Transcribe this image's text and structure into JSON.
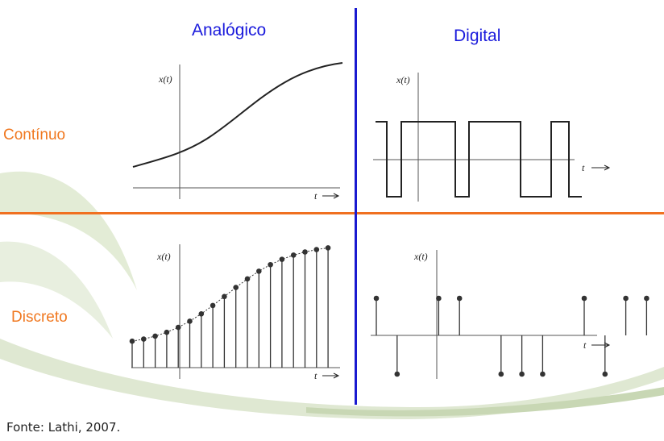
{
  "header": {
    "analog": "Analógico",
    "digital": "Digital"
  },
  "rows": {
    "continuous": "Contínuo",
    "discrete": "Discreto"
  },
  "source": "Fonte: Lathi, 2007.",
  "plot_labels": {
    "y": "x(t)",
    "x": "t"
  },
  "colors": {
    "column_title": "#1a1adc",
    "row_title": "#f07820",
    "h_separator": "#f07020",
    "v_separator": "#1a1ad0"
  },
  "signals": {
    "discrete_analog_samples": 18,
    "digital_levels": [
      "high",
      "low",
      "high",
      "high",
      "high",
      "low",
      "low",
      "high",
      "high",
      "low",
      "low",
      "low",
      "low",
      "high",
      "high",
      "low",
      "high",
      "high",
      "low",
      "high"
    ],
    "discrete_digital": [
      1,
      -1,
      0,
      1,
      1,
      0,
      -1,
      -1,
      -1,
      0,
      1,
      -1,
      1,
      1
    ]
  }
}
